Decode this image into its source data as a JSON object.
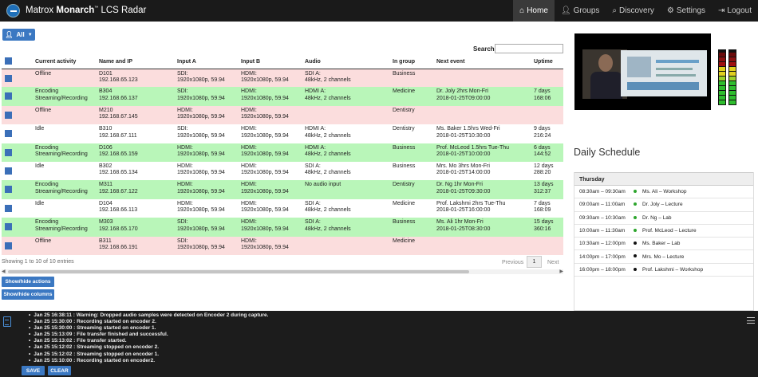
{
  "app": {
    "brand_prefix": "Matrox",
    "brand_name": "Monarch",
    "brand_suffix": "LCS Radar"
  },
  "nav": [
    {
      "label": "Home",
      "icon": "home-icon"
    },
    {
      "label": "Groups",
      "icon": "user-icon"
    },
    {
      "label": "Discovery",
      "icon": "search-icon"
    },
    {
      "label": "Settings",
      "icon": "gear-icon"
    },
    {
      "label": "Logout",
      "icon": "logout-icon"
    }
  ],
  "filter": {
    "label": "All"
  },
  "search": {
    "label": "Search:",
    "value": ""
  },
  "table": {
    "headers": [
      "Current activity",
      "Name and IP",
      "Input A",
      "Input B",
      "Audio",
      "In group",
      "Next event",
      "Uptime"
    ],
    "rows": [
      {
        "status": "offline",
        "activity": [
          "Offline",
          ""
        ],
        "name": [
          "D101",
          "192.168.65.123"
        ],
        "input_a": [
          "SDI:",
          "1920x1080p, 59.94"
        ],
        "input_b": [
          "HDMI:",
          "1920x1080p, 59.94"
        ],
        "audio": [
          "SDI A:",
          "48kHz, 2 channels"
        ],
        "group": "Business",
        "next": [
          "",
          ""
        ],
        "uptime": [
          "",
          ""
        ]
      },
      {
        "status": "active",
        "activity": [
          "Encoding",
          "Streaming/Recording"
        ],
        "name": [
          "B304",
          "192.168.66.137"
        ],
        "input_a": [
          "SDI:",
          "1920x1080p, 59.94"
        ],
        "input_b": [
          "HDMI:",
          "1920x1080p, 59.94"
        ],
        "audio": [
          "HDMI A:",
          "48kHz, 2 channels"
        ],
        "group": "Medicine",
        "next": [
          "Dr. Joly 2hrs Mon-Fri",
          "2018-01-25T09:00:00"
        ],
        "uptime": [
          "7 days",
          "168:06"
        ]
      },
      {
        "status": "offline",
        "activity": [
          "Offline",
          ""
        ],
        "name": [
          "M210",
          "192.168.67.145"
        ],
        "input_a": [
          "HDMI:",
          "1920x1080p, 59.94"
        ],
        "input_b": [
          "HDMI:",
          "1920x1080p, 59.94"
        ],
        "audio": [
          "",
          ""
        ],
        "group": "Dentistry",
        "next": [
          "",
          ""
        ],
        "uptime": [
          "",
          ""
        ]
      },
      {
        "status": "idle",
        "activity": [
          "Idle",
          ""
        ],
        "name": [
          "B310",
          "192.168.67.111"
        ],
        "input_a": [
          "SDI:",
          "1920x1080p, 59.94"
        ],
        "input_b": [
          "HDMI:",
          "1920x1080p, 59.94"
        ],
        "audio": [
          "HDMI A:",
          "48kHz, 2 channels"
        ],
        "group": "Dentistry",
        "next": [
          "Ms. Baker 1.5hrs Wed-Fri",
          "2018-01-25T10:30:00"
        ],
        "uptime": [
          "9 days",
          "216:24"
        ]
      },
      {
        "status": "active",
        "activity": [
          "Encoding",
          "Streaming/Recording"
        ],
        "name": [
          "D106",
          "192.168.65.159"
        ],
        "input_a": [
          "HDMI:",
          "1920x1080p, 59.94"
        ],
        "input_b": [
          "HDMI:",
          "1920x1080p, 59.94"
        ],
        "audio": [
          "HDMI A:",
          "48kHz, 2 channels"
        ],
        "group": "Business",
        "next": [
          "Prof. McLeod 1.5hrs Tue-Thu",
          "2018-01-25T10:00:00"
        ],
        "uptime": [
          "6 days",
          "144:52"
        ]
      },
      {
        "status": "idle",
        "activity": [
          "Idle",
          ""
        ],
        "name": [
          "B302",
          "192.168.65.134"
        ],
        "input_a": [
          "HDMI:",
          "1920x1080p, 59.94"
        ],
        "input_b": [
          "HDMI:",
          "1920x1080p, 59.94"
        ],
        "audio": [
          "SDI A:",
          "48kHz, 2 channels"
        ],
        "group": "Business",
        "next": [
          "Mrs. Mo 3hrs Mon-Fri",
          "2018-01-25T14:00:00"
        ],
        "uptime": [
          "12 days",
          "288:20"
        ]
      },
      {
        "status": "active",
        "activity": [
          "Encoding",
          "Streaming/Recording"
        ],
        "name": [
          "M311",
          "192.168.67.122"
        ],
        "input_a": [
          "HDMI:",
          "1920x1080p, 59.94"
        ],
        "input_b": [
          "HDMI:",
          "1920x1080p, 59.94"
        ],
        "audio": [
          "No audio input",
          ""
        ],
        "group": "Dentistry",
        "next": [
          "Dr. Ng 1hr Mon-Fri",
          "2018-01-25T09:30:00"
        ],
        "uptime": [
          "13 days",
          "312:37"
        ]
      },
      {
        "status": "idle",
        "activity": [
          "Idle",
          ""
        ],
        "name": [
          "D104",
          "192.168.66.113"
        ],
        "input_a": [
          "HDMI:",
          "1920x1080p, 59.94"
        ],
        "input_b": [
          "HDMI:",
          "1920x1080p, 59.94"
        ],
        "audio": [
          "SDI A:",
          "48kHz, 2 channels"
        ],
        "group": "Medicine",
        "next": [
          "Prof. Lakshmi 2hrs Tue-Thu",
          "2018-01-25T16:00:00"
        ],
        "uptime": [
          "7 days",
          "168:09"
        ]
      },
      {
        "status": "active",
        "activity": [
          "Encoding",
          "Streaming/Recording"
        ],
        "name": [
          "M303",
          "192.168.65.170"
        ],
        "input_a": [
          "SDI:",
          "1920x1080p, 59.94"
        ],
        "input_b": [
          "HDMI:",
          "1920x1080p, 59.94"
        ],
        "audio": [
          "SDI A:",
          "48kHz, 2 channels"
        ],
        "group": "Business",
        "next": [
          "Ms. Ali 1hr Mon-Fri",
          "2018-01-25T08:30:00"
        ],
        "uptime": [
          "15 days",
          "360:16"
        ]
      },
      {
        "status": "offline",
        "activity": [
          "Offline",
          ""
        ],
        "name": [
          "B311",
          "192.168.66.191"
        ],
        "input_a": [
          "SDI:",
          "1920x1080p, 59.94"
        ],
        "input_b": [
          "HDMI:",
          "1920x1080p, 59.94"
        ],
        "audio": [
          "",
          ""
        ],
        "group": "Medicine",
        "next": [
          "",
          ""
        ],
        "uptime": [
          "",
          ""
        ]
      }
    ]
  },
  "table_info": "Showing 1 to 10 of 10 entries",
  "pagination": {
    "prev": "Previous",
    "current": "1",
    "next": "Next"
  },
  "buttons": {
    "show_hide_actions": "Show/hide actions",
    "show_hide_columns": "Show/hide columns"
  },
  "schedule": {
    "title": "Daily Schedule",
    "day": "Thursday",
    "items": [
      {
        "time": "08:30am – 09:30am",
        "name": "Ms. Ali – Workshop",
        "dot": "#2da52d"
      },
      {
        "time": "09:00am – 11:00am",
        "name": "Dr. Joly – Lecture",
        "dot": "#2da52d"
      },
      {
        "time": "09:30am – 10:30am",
        "name": "Dr. Ng – Lab",
        "dot": "#2da52d"
      },
      {
        "time": "10:00am – 11:30am",
        "name": "Prof. McLeod – Lecture",
        "dot": "#2da52d"
      },
      {
        "time": "10:30am – 12:00pm",
        "name": "Ms. Baker – Lab",
        "dot": "#111111"
      },
      {
        "time": "14:00pm – 17:00pm",
        "name": "Mrs. Mo – Lecture",
        "dot": "#111111"
      },
      {
        "time": "16:00pm – 18:00pm",
        "name": "Prof. Lakshmi – Workshop",
        "dot": "#111111"
      }
    ]
  },
  "log": [
    "Jan 25 16:38:11 : Warning: Dropped audio samples were detected on Encoder 2 during capture.",
    "Jan 25 15:30:00 : Recording started on encoder 2.",
    "Jan 25 15:30:00 : Streaming started on encoder 1.",
    "Jan 25 15:13:09 : File transfer finished and successful.",
    "Jan 25 15:13:02 : File transfer started.",
    "Jan 25 15:12:02 : Streaming stopped on encoder 2.",
    "Jan 25 15:12:02 : Streaming stopped on encoder 1.",
    "Jan 25 15:10:00 : Recording started on encoder2."
  ],
  "log_buttons": {
    "save": "SAVE",
    "clear": "CLEAR"
  },
  "colors": {
    "accent": "#3b78c2",
    "offline_row": "#fbdddd",
    "active_row": "#b9f6b9",
    "topbar": "#1a1a1a"
  }
}
